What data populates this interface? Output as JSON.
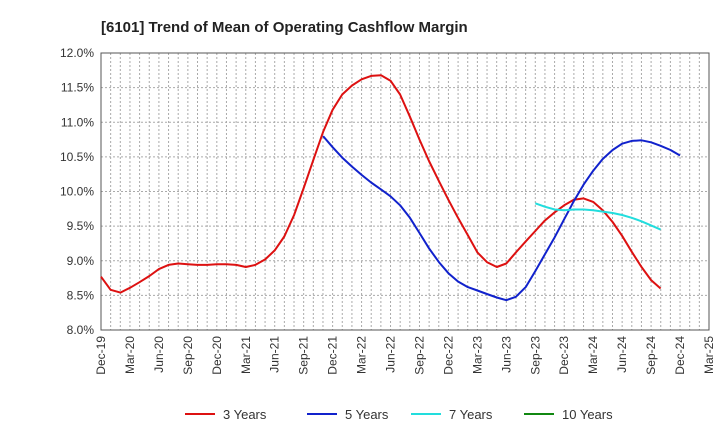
{
  "chart_data": {
    "type": "line",
    "title": "[6101]  Trend of Mean of Operating Cashflow Margin",
    "xlabel": "",
    "ylabel": "",
    "x": [
      "Dec-19",
      "Mar-20",
      "Jun-20",
      "Sep-20",
      "Dec-20",
      "Mar-21",
      "Jun-21",
      "Sep-21",
      "Dec-21",
      "Mar-22",
      "Jun-22",
      "Sep-22",
      "Dec-22",
      "Mar-23",
      "Jun-23",
      "Sep-23",
      "Dec-23",
      "Mar-24",
      "Jun-24",
      "Sep-24",
      "Dec-24",
      "Mar-25"
    ],
    "ylim": [
      8.0,
      12.0
    ],
    "yticks": [
      "8.0%",
      "8.5%",
      "9.0%",
      "9.5%",
      "10.0%",
      "10.5%",
      "11.0%",
      "11.5%",
      "12.0%"
    ],
    "grid": true,
    "legend_position": "bottom",
    "series": [
      {
        "name": "3 Years",
        "color": "#dd1111",
        "points": [
          [
            0,
            8.77
          ],
          [
            0.33,
            8.58
          ],
          [
            0.67,
            8.54
          ],
          [
            1,
            8.61
          ],
          [
            1.33,
            8.69
          ],
          [
            1.67,
            8.78
          ],
          [
            2,
            8.88
          ],
          [
            2.33,
            8.94
          ],
          [
            2.67,
            8.96
          ],
          [
            3,
            8.95
          ],
          [
            3.33,
            8.94
          ],
          [
            3.67,
            8.94
          ],
          [
            4,
            8.95
          ],
          [
            4.33,
            8.95
          ],
          [
            4.67,
            8.94
          ],
          [
            5,
            8.91
          ],
          [
            5.33,
            8.94
          ],
          [
            5.67,
            9.02
          ],
          [
            6,
            9.15
          ],
          [
            6.33,
            9.35
          ],
          [
            6.67,
            9.66
          ],
          [
            7,
            10.05
          ],
          [
            7.33,
            10.45
          ],
          [
            7.67,
            10.86
          ],
          [
            8,
            11.18
          ],
          [
            8.33,
            11.4
          ],
          [
            8.67,
            11.53
          ],
          [
            9,
            11.62
          ],
          [
            9.33,
            11.67
          ],
          [
            9.67,
            11.68
          ],
          [
            10,
            11.6
          ],
          [
            10.33,
            11.4
          ],
          [
            10.67,
            11.08
          ],
          [
            11,
            10.75
          ],
          [
            11.33,
            10.44
          ],
          [
            11.67,
            10.15
          ],
          [
            12,
            9.88
          ],
          [
            12.33,
            9.62
          ],
          [
            12.67,
            9.37
          ],
          [
            13,
            9.12
          ],
          [
            13.33,
            8.98
          ],
          [
            13.67,
            8.91
          ],
          [
            14,
            8.96
          ],
          [
            14.33,
            9.12
          ],
          [
            14.67,
            9.28
          ],
          [
            15,
            9.43
          ],
          [
            15.33,
            9.58
          ],
          [
            15.67,
            9.7
          ],
          [
            16,
            9.8
          ],
          [
            16.33,
            9.88
          ],
          [
            16.67,
            9.9
          ],
          [
            17,
            9.85
          ],
          [
            17.33,
            9.73
          ],
          [
            17.67,
            9.56
          ],
          [
            18,
            9.36
          ],
          [
            18.33,
            9.13
          ],
          [
            18.67,
            8.91
          ],
          [
            19,
            8.72
          ],
          [
            19.33,
            8.6
          ]
        ]
      },
      {
        "name": "5 Years",
        "color": "#1122cc",
        "points": [
          [
            7.67,
            10.8
          ],
          [
            8,
            10.64
          ],
          [
            8.33,
            10.49
          ],
          [
            8.67,
            10.36
          ],
          [
            9,
            10.24
          ],
          [
            9.33,
            10.13
          ],
          [
            9.67,
            10.03
          ],
          [
            10,
            9.93
          ],
          [
            10.33,
            9.8
          ],
          [
            10.67,
            9.62
          ],
          [
            11,
            9.4
          ],
          [
            11.33,
            9.18
          ],
          [
            11.67,
            8.98
          ],
          [
            12,
            8.82
          ],
          [
            12.33,
            8.7
          ],
          [
            12.67,
            8.62
          ],
          [
            13,
            8.57
          ],
          [
            13.33,
            8.52
          ],
          [
            13.67,
            8.47
          ],
          [
            14,
            8.43
          ],
          [
            14.33,
            8.48
          ],
          [
            14.67,
            8.62
          ],
          [
            15,
            8.85
          ],
          [
            15.33,
            9.09
          ],
          [
            15.67,
            9.34
          ],
          [
            16,
            9.6
          ],
          [
            16.33,
            9.86
          ],
          [
            16.67,
            10.1
          ],
          [
            17,
            10.3
          ],
          [
            17.33,
            10.47
          ],
          [
            17.67,
            10.6
          ],
          [
            18,
            10.69
          ],
          [
            18.33,
            10.73
          ],
          [
            18.67,
            10.74
          ],
          [
            19,
            10.71
          ],
          [
            19.33,
            10.66
          ],
          [
            19.67,
            10.6
          ],
          [
            20,
            10.52
          ]
        ]
      },
      {
        "name": "7 Years",
        "color": "#22dddd",
        "points": [
          [
            15,
            9.83
          ],
          [
            15.33,
            9.78
          ],
          [
            15.67,
            9.74
          ],
          [
            16,
            9.73
          ],
          [
            16.33,
            9.74
          ],
          [
            16.67,
            9.74
          ],
          [
            17,
            9.73
          ],
          [
            17.33,
            9.71
          ],
          [
            17.67,
            9.69
          ],
          [
            18,
            9.66
          ],
          [
            18.33,
            9.62
          ],
          [
            18.67,
            9.57
          ],
          [
            19,
            9.51
          ],
          [
            19.33,
            9.45
          ]
        ]
      },
      {
        "name": "10 Years",
        "color": "#118811",
        "points": []
      }
    ]
  }
}
